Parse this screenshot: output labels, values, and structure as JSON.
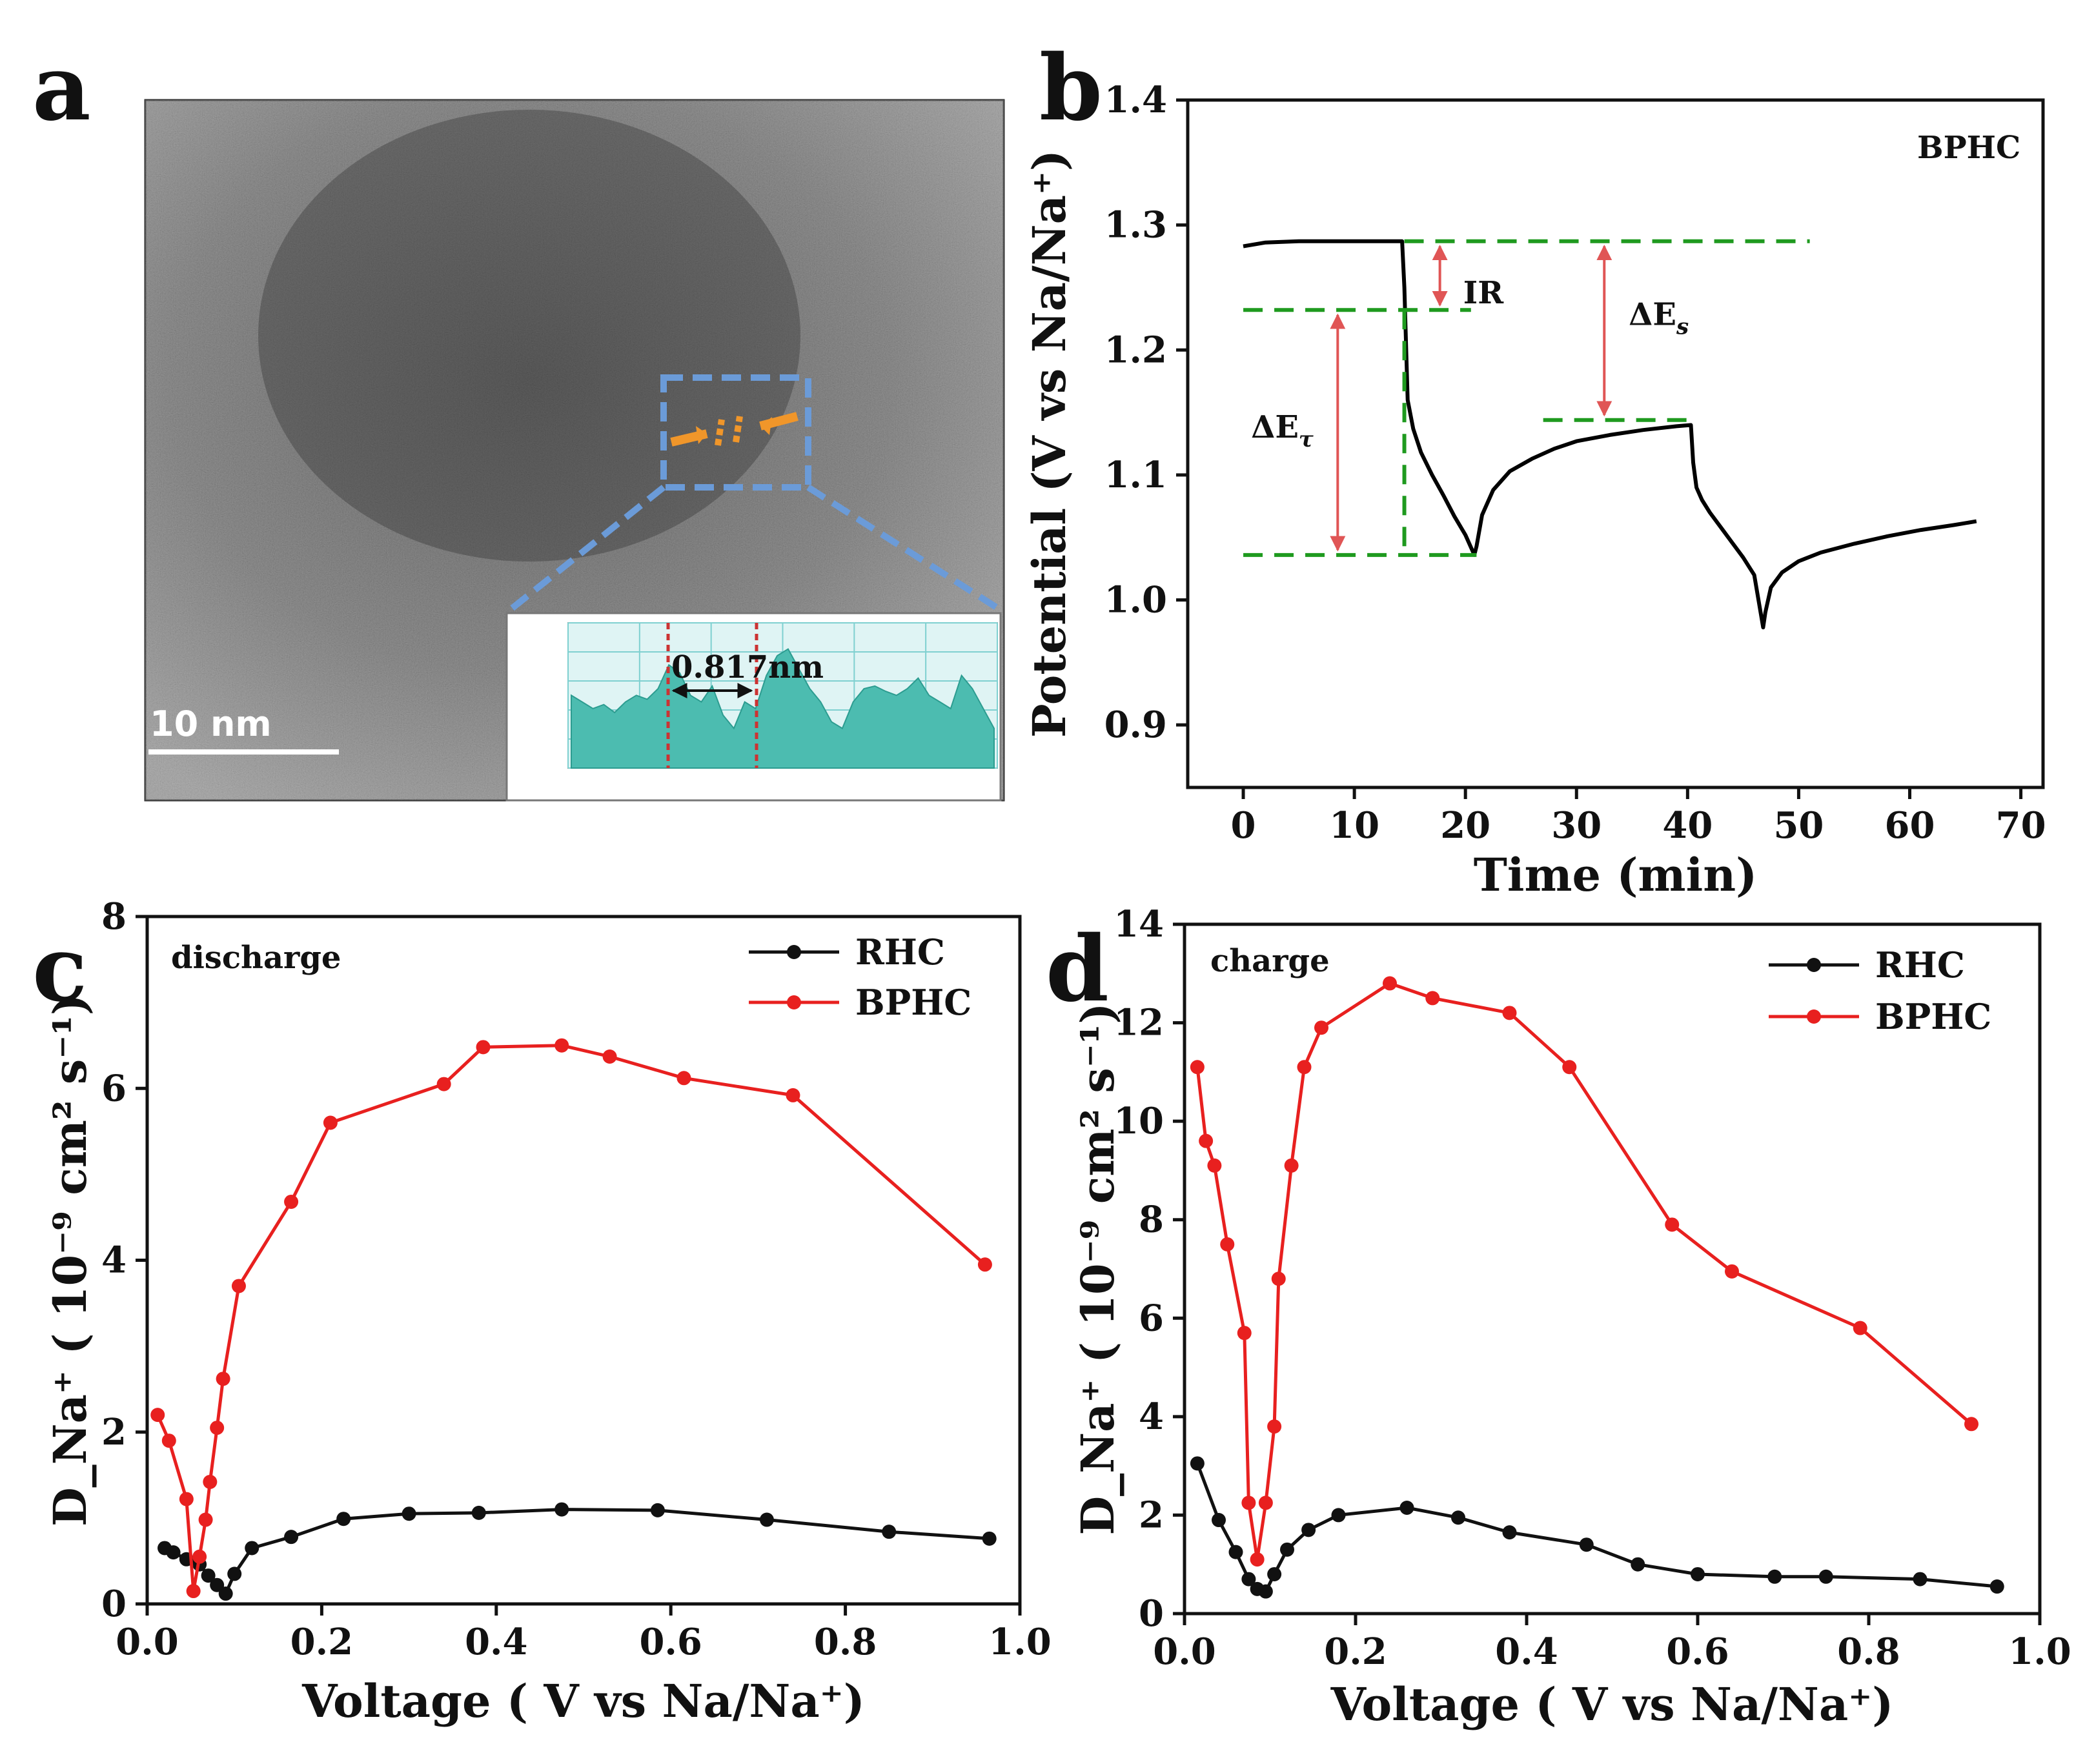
{
  "panels": {
    "a": {
      "letter": "a",
      "scale_bar_label": "10 nm",
      "inset_annotation": "0.817nm",
      "colors": {
        "frame": "#6b9bd8",
        "arrow": "#f0962a",
        "profile_fill": "#4cbcb0",
        "dashed": "#cc3333"
      }
    },
    "b": {
      "letter": "b",
      "label": "BPHC",
      "annotation_ir": "IR",
      "annotation_es": "ΔE",
      "annotation_es_sub": "s",
      "annotation_et": "ΔE",
      "annotation_et_sub": "τ"
    },
    "c": {
      "letter": "c",
      "label": "discharge"
    },
    "d": {
      "letter": "d",
      "label": "charge"
    }
  },
  "chart_data": [
    {
      "panel": "b",
      "type": "line",
      "xlabel": "Time (min)",
      "ylabel": "Potential (V vs Na/Na⁺)",
      "xlim": [
        -5,
        72
      ],
      "ylim": [
        0.85,
        1.4
      ],
      "xticks": [
        0,
        10,
        20,
        30,
        40,
        50,
        60,
        70
      ],
      "yticks": [
        0.9,
        1.0,
        1.1,
        1.2,
        1.3,
        1.4
      ],
      "series": [
        {
          "color": "#000000",
          "x": [
            0,
            2,
            5,
            8,
            11,
            14.3,
            14.5,
            14.8,
            15.3,
            16,
            17,
            18,
            19,
            20,
            20.8,
            21,
            21.5,
            22.5,
            24,
            26,
            28,
            30,
            33,
            36,
            39,
            40.3,
            40.5,
            40.8,
            41.3,
            42,
            43,
            44,
            45,
            46,
            46.8,
            47,
            47.5,
            48.5,
            50,
            52,
            55,
            58,
            61,
            64,
            66
          ],
          "y": [
            1.283,
            1.286,
            1.287,
            1.287,
            1.287,
            1.287,
            1.25,
            1.16,
            1.137,
            1.118,
            1.1,
            1.084,
            1.067,
            1.052,
            1.036,
            1.043,
            1.068,
            1.088,
            1.103,
            1.113,
            1.121,
            1.127,
            1.132,
            1.136,
            1.139,
            1.14,
            1.11,
            1.09,
            1.08,
            1.07,
            1.058,
            1.046,
            1.034,
            1.02,
            0.978,
            0.99,
            1.01,
            1.022,
            1.031,
            1.038,
            1.045,
            1.051,
            1.056,
            1.06,
            1.063
          ]
        }
      ],
      "guides": {
        "color": "#1f9a1f",
        "arrow_color": "#e05555"
      }
    },
    {
      "panel": "c",
      "type": "line",
      "xlabel": "Voltage ( V vs Na/Na⁺)",
      "ylabel": "D_Na⁺ ( 10⁻⁹ cm² s⁻¹)",
      "xlim": [
        0.0,
        1.0
      ],
      "ylim": [
        0,
        8
      ],
      "xticks": [
        0.0,
        0.2,
        0.4,
        0.6,
        0.8,
        1.0
      ],
      "yticks": [
        0,
        2,
        4,
        6,
        8
      ],
      "legend_position": "top-right",
      "series": [
        {
          "name": "RHC",
          "color": "#111111",
          "x": [
            0.02,
            0.03,
            0.045,
            0.06,
            0.07,
            0.08,
            0.09,
            0.1,
            0.12,
            0.165,
            0.225,
            0.3,
            0.38,
            0.475,
            0.585,
            0.71,
            0.85,
            0.965
          ],
          "y": [
            0.65,
            0.6,
            0.52,
            0.46,
            0.33,
            0.22,
            0.12,
            0.35,
            0.65,
            0.78,
            0.99,
            1.05,
            1.06,
            1.1,
            1.09,
            0.98,
            0.84,
            0.76
          ]
        },
        {
          "name": "BPHC",
          "color": "#e8201f",
          "x": [
            0.012,
            0.025,
            0.045,
            0.053,
            0.06,
            0.067,
            0.072,
            0.08,
            0.087,
            0.105,
            0.165,
            0.21,
            0.34,
            0.385,
            0.475,
            0.53,
            0.615,
            0.74,
            0.96
          ],
          "y": [
            2.2,
            1.9,
            1.22,
            0.15,
            0.55,
            0.98,
            1.42,
            2.05,
            2.62,
            3.7,
            4.68,
            5.6,
            6.05,
            6.48,
            6.5,
            6.37,
            6.12,
            5.92,
            3.95
          ]
        }
      ]
    },
    {
      "panel": "d",
      "type": "line",
      "xlabel": "Voltage ( V vs Na/Na⁺)",
      "ylabel": "D_Na⁺ ( 10⁻⁹ cm² s⁻¹)",
      "xlim": [
        0.0,
        1.0
      ],
      "ylim": [
        0,
        14
      ],
      "xticks": [
        0.0,
        0.2,
        0.4,
        0.6,
        0.8,
        1.0
      ],
      "yticks": [
        0,
        2,
        4,
        6,
        8,
        10,
        12,
        14
      ],
      "legend_position": "top-right",
      "series": [
        {
          "name": "RHC",
          "color": "#111111",
          "x": [
            0.015,
            0.04,
            0.06,
            0.075,
            0.085,
            0.095,
            0.105,
            0.12,
            0.145,
            0.18,
            0.26,
            0.32,
            0.38,
            0.47,
            0.53,
            0.6,
            0.69,
            0.75,
            0.86,
            0.95
          ],
          "y": [
            3.05,
            1.9,
            1.25,
            0.7,
            0.5,
            0.45,
            0.8,
            1.3,
            1.7,
            2.0,
            2.15,
            1.95,
            1.65,
            1.4,
            1.0,
            0.8,
            0.75,
            0.75,
            0.7,
            0.55
          ]
        },
        {
          "name": "BPHC",
          "color": "#e8201f",
          "x": [
            0.015,
            0.025,
            0.035,
            0.05,
            0.07,
            0.075,
            0.085,
            0.095,
            0.105,
            0.11,
            0.125,
            0.14,
            0.16,
            0.24,
            0.29,
            0.38,
            0.45,
            0.57,
            0.64,
            0.79,
            0.92
          ],
          "y": [
            11.1,
            9.6,
            9.1,
            7.5,
            5.7,
            2.25,
            1.1,
            2.25,
            3.8,
            6.8,
            9.1,
            11.1,
            11.9,
            12.8,
            12.5,
            12.2,
            11.1,
            7.9,
            6.95,
            5.8,
            3.85
          ]
        }
      ]
    }
  ]
}
